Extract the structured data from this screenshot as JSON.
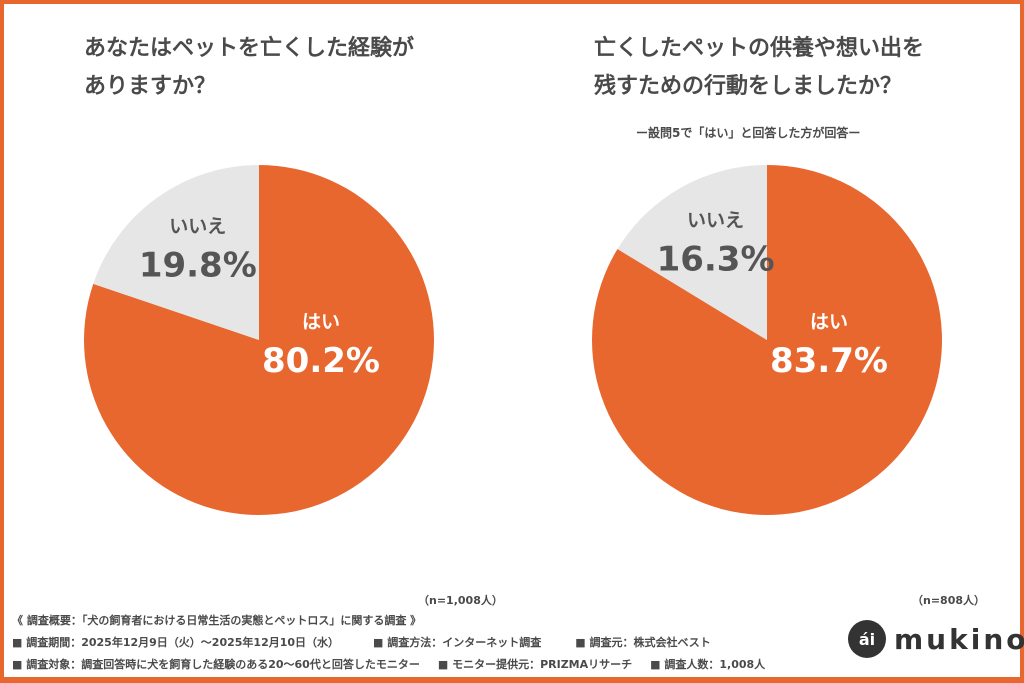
{
  "colors": {
    "yes": "#e8672f",
    "no": "#e6e6e6",
    "border": "#e8672f",
    "label_on_orange": "#ffffff",
    "label_on_gray": "#555555"
  },
  "chart_data": [
    {
      "type": "pie",
      "title_lines": [
        "あなたはペットを亡くした経験が",
        "ありますか？"
      ],
      "subtitle": "",
      "categories": [
        "はい",
        "いいえ"
      ],
      "values": [
        80.2,
        19.8
      ],
      "labels": [
        "80.2%",
        "19.8%"
      ],
      "n": "（n=1,008人）"
    },
    {
      "type": "pie",
      "title_lines": [
        "亡くしたペットの供養や想い出を",
        "残すための行動をしましたか？"
      ],
      "subtitle": "ー設問5で「はい」と回答した方が回答ー",
      "categories": [
        "はい",
        "いいえ"
      ],
      "values": [
        83.7,
        16.3
      ],
      "labels": [
        "83.7%",
        "16.3%"
      ],
      "n": "（n=808人）"
    }
  ],
  "footer": {
    "line1": "《 調査概要：「犬の飼育者における日常生活の実態とペットロス」に関する調査 》",
    "line2": [
      "■ 調査期間：2025年12月9日（火）〜2025年12月10日（水）",
      "■ 調査方法：インターネット調査",
      "■ 調査元：株式会社ベスト"
    ],
    "line3": [
      "■ 調査対象：調査回答時に犬を飼育した経験のある20〜60代と回答したモニター",
      "■ モニター提供元：PRIZMAリサーチ",
      "■ 調査人数：1,008人"
    ]
  },
  "logo": {
    "mark": "ái",
    "word": "mukino"
  }
}
